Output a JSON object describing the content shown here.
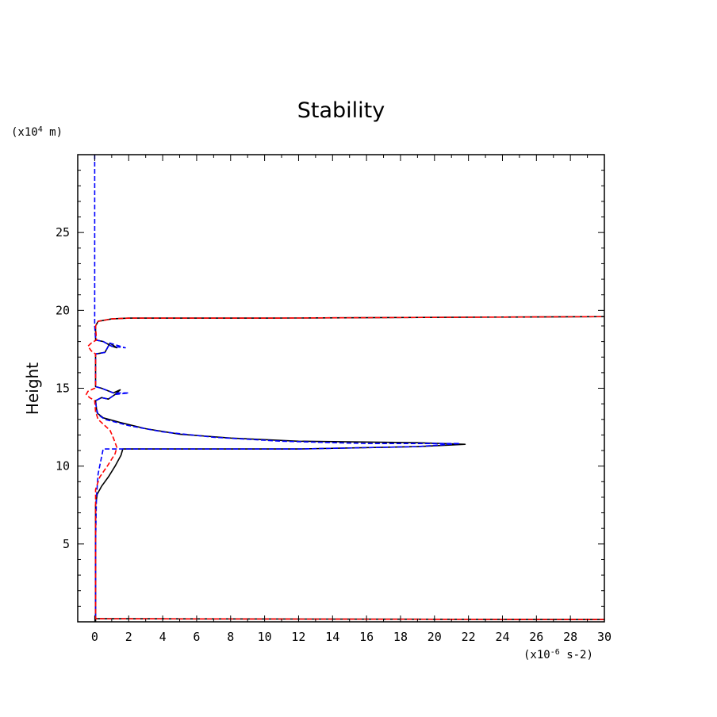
{
  "chart_data": {
    "type": "line",
    "title": "Stability",
    "xlabel": "",
    "x_unit": "(x10^-6 s-2)",
    "x_unit_parts": {
      "prefix": "(x10",
      "exp": "-6",
      "suffix": " s-2)"
    },
    "ylabel": "Height",
    "y_unit": "(x10^4 m)",
    "y_unit_parts": {
      "prefix": "(x10",
      "exp": "4",
      "suffix": " m)"
    },
    "xlim": [
      -1,
      30
    ],
    "ylim": [
      0,
      30
    ],
    "x_ticks": [
      0,
      2,
      4,
      6,
      8,
      10,
      12,
      14,
      16,
      18,
      20,
      22,
      24,
      26,
      28,
      30
    ],
    "y_ticks": [
      5,
      10,
      15,
      20,
      25
    ],
    "grid": false,
    "series": [
      {
        "color": "#000000",
        "dash": "solid",
        "points": [
          [
            0.05,
            0.0
          ],
          [
            0.05,
            0.2
          ],
          [
            30,
            0.15
          ],
          [
            0.05,
            0.2
          ],
          [
            0.05,
            7.5
          ],
          [
            0.15,
            8.2
          ],
          [
            0.4,
            8.7
          ],
          [
            0.8,
            9.3
          ],
          [
            1.2,
            10.0
          ],
          [
            1.55,
            10.7
          ],
          [
            1.65,
            11.1
          ],
          [
            12,
            11.1
          ],
          [
            19,
            11.25
          ],
          [
            21.8,
            11.4
          ],
          [
            19,
            11.5
          ],
          [
            12,
            11.6
          ],
          [
            8,
            11.8
          ],
          [
            5,
            12.05
          ],
          [
            3,
            12.4
          ],
          [
            1.5,
            12.8
          ],
          [
            0.5,
            13.1
          ],
          [
            0.15,
            13.4
          ],
          [
            0.1,
            13.7
          ],
          [
            0.05,
            14.2
          ],
          [
            0.4,
            14.4
          ],
          [
            0.8,
            14.3
          ],
          [
            1.2,
            14.6
          ],
          [
            1.5,
            14.9
          ],
          [
            1.1,
            14.7
          ],
          [
            0.4,
            15.0
          ],
          [
            0.05,
            15.1
          ],
          [
            0.05,
            17.2
          ],
          [
            0.6,
            17.3
          ],
          [
            0.9,
            17.9
          ],
          [
            1.3,
            17.6
          ],
          [
            1.0,
            17.7
          ],
          [
            0.5,
            18.0
          ],
          [
            0.05,
            18.1
          ],
          [
            0.05,
            19.0
          ],
          [
            0.2,
            19.3
          ],
          [
            1.0,
            19.45
          ],
          [
            2.0,
            19.5
          ],
          [
            10,
            19.5
          ],
          [
            30,
            19.6
          ]
        ]
      },
      {
        "color": "#0000ff",
        "dash": "dashed",
        "points": [
          [
            0.0,
            30.0
          ],
          [
            0.0,
            19.0
          ],
          [
            0.05,
            18.1
          ],
          [
            0.5,
            18.0
          ],
          [
            1.0,
            17.7
          ],
          [
            1.8,
            17.6
          ],
          [
            0.9,
            17.9
          ],
          [
            0.6,
            17.3
          ],
          [
            0.05,
            17.2
          ],
          [
            0.05,
            15.1
          ],
          [
            0.4,
            15.0
          ],
          [
            1.1,
            14.7
          ],
          [
            2.0,
            14.7
          ],
          [
            1.2,
            14.6
          ],
          [
            0.8,
            14.3
          ],
          [
            0.4,
            14.4
          ],
          [
            0.05,
            14.2
          ],
          [
            0.1,
            13.7
          ],
          [
            0.2,
            13.3
          ],
          [
            0.6,
            13.0
          ],
          [
            2.0,
            12.6
          ],
          [
            4.0,
            12.2
          ],
          [
            7.0,
            11.85
          ],
          [
            11.0,
            11.6
          ],
          [
            16.0,
            11.45
          ],
          [
            21.5,
            11.45
          ],
          [
            19.0,
            11.25
          ],
          [
            12.0,
            11.1
          ],
          [
            0.5,
            11.1
          ],
          [
            0.2,
            9.5
          ],
          [
            0.1,
            8.0
          ],
          [
            0.05,
            5.0
          ],
          [
            0.05,
            0.2
          ]
        ]
      },
      {
        "color": "#ff0000",
        "dash": "dashed",
        "points": [
          [
            30,
            0.15
          ],
          [
            0.05,
            0.2
          ],
          [
            0.05,
            8.5
          ],
          [
            0.3,
            9.3
          ],
          [
            0.8,
            10.1
          ],
          [
            1.2,
            10.8
          ],
          [
            1.3,
            11.2
          ],
          [
            1.1,
            11.8
          ],
          [
            0.9,
            12.3
          ],
          [
            0.5,
            12.7
          ],
          [
            0.2,
            13.0
          ],
          [
            0.05,
            13.5
          ],
          [
            0.0,
            14.2
          ],
          [
            -0.3,
            14.4
          ],
          [
            -0.5,
            14.6
          ],
          [
            -0.4,
            14.8
          ],
          [
            0.0,
            15.0
          ],
          [
            0.05,
            15.2
          ],
          [
            0.05,
            17.2
          ],
          [
            -0.2,
            17.4
          ],
          [
            -0.4,
            17.7
          ],
          [
            -0.2,
            17.9
          ],
          [
            0.1,
            18.1
          ],
          [
            0.05,
            19.0
          ],
          [
            0.2,
            19.3
          ],
          [
            1.0,
            19.45
          ],
          [
            2.0,
            19.5
          ],
          [
            10,
            19.5
          ],
          [
            30,
            19.6
          ]
        ]
      }
    ]
  }
}
